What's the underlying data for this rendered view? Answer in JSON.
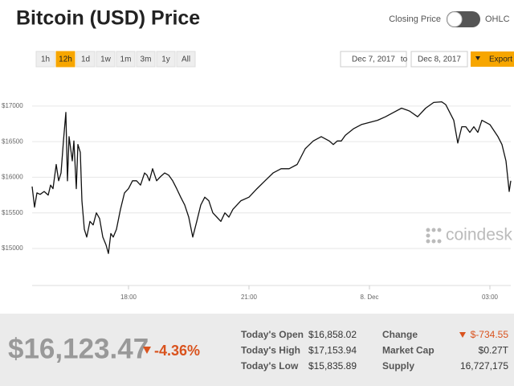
{
  "header": {
    "title": "Bitcoin (USD) Price",
    "toggle_left": "Closing Price",
    "toggle_right": "OHLC"
  },
  "ranges": [
    "1h",
    "12h",
    "1d",
    "1w",
    "1m",
    "3m",
    "1y",
    "All"
  ],
  "active_range": 1,
  "dates": {
    "from": "Dec 7, 2017",
    "to_label": "to",
    "to": "Dec 8, 2017",
    "export": "Export"
  },
  "chart_data": {
    "type": "line",
    "color": "#111111",
    "x": [
      15.6,
      15.66,
      15.72,
      15.8,
      15.9,
      16.0,
      16.06,
      16.12,
      16.2,
      16.26,
      16.32,
      16.38,
      16.44,
      16.48,
      16.52,
      16.56,
      16.6,
      16.64,
      16.7,
      16.74,
      16.8,
      16.84,
      16.9,
      16.96,
      17.04,
      17.12,
      17.2,
      17.28,
      17.36,
      17.44,
      17.5,
      17.56,
      17.62,
      17.7,
      17.8,
      17.9,
      18.0,
      18.1,
      18.2,
      18.3,
      18.4,
      18.46,
      18.52,
      18.6,
      18.7,
      18.8,
      18.9,
      19.0,
      19.1,
      19.2,
      19.3,
      19.4,
      19.5,
      19.6,
      19.7,
      19.8,
      19.9,
      20.0,
      20.1,
      20.2,
      20.3,
      20.4,
      20.5,
      20.6,
      20.8,
      21.0,
      21.2,
      21.4,
      21.6,
      21.8,
      22.0,
      22.2,
      22.4,
      22.6,
      22.8,
      23.0,
      23.1,
      23.2,
      23.3,
      23.4,
      23.6,
      23.8,
      24.0,
      24.2,
      24.4,
      24.6,
      24.8,
      25.0,
      25.2,
      25.4,
      25.6,
      25.8,
      25.9,
      26.0,
      26.1,
      26.2,
      26.3,
      26.4,
      26.5,
      26.6,
      26.7,
      26.8,
      27.0,
      27.2,
      27.3,
      27.4,
      27.48,
      27.52
    ],
    "values": [
      15870,
      15580,
      15780,
      15760,
      15800,
      15750,
      15890,
      15840,
      16180,
      15950,
      16060,
      16510,
      16910,
      15950,
      16570,
      16400,
      16230,
      16510,
      15840,
      16460,
      16350,
      15670,
      15270,
      15160,
      15380,
      15330,
      15500,
      15420,
      15160,
      15050,
      14930,
      15210,
      15160,
      15270,
      15550,
      15780,
      15840,
      15950,
      15950,
      15890,
      16060,
      16030,
      15950,
      16120,
      15950,
      16010,
      16060,
      16030,
      15950,
      15840,
      15720,
      15610,
      15440,
      15160,
      15380,
      15610,
      15720,
      15670,
      15500,
      15440,
      15380,
      15500,
      15440,
      15550,
      15670,
      15720,
      15840,
      15950,
      16060,
      16120,
      16120,
      16180,
      16400,
      16510,
      16570,
      16510,
      16460,
      16510,
      16510,
      16590,
      16680,
      16740,
      16770,
      16800,
      16850,
      16910,
      16970,
      16930,
      16850,
      16970,
      17050,
      17060,
      17020,
      16910,
      16800,
      16480,
      16710,
      16710,
      16630,
      16710,
      16630,
      16800,
      16740,
      16570,
      16460,
      16230,
      15800,
      15950
    ],
    "xlim": [
      15.6,
      27.52
    ],
    "ylim": [
      14480,
      17360
    ],
    "xticks": [
      {
        "value": 18,
        "label": "18:00"
      },
      {
        "value": 21,
        "label": "21:00"
      },
      {
        "value": 24,
        "label": "8. Dec"
      },
      {
        "value": 27,
        "label": "03:00"
      }
    ],
    "yticks": [
      {
        "value": 15000,
        "label": "$15000"
      },
      {
        "value": 15500,
        "label": "$15500"
      },
      {
        "value": 16000,
        "label": "$16000"
      },
      {
        "value": 16500,
        "label": "$16500"
      },
      {
        "value": 17000,
        "label": "$17000"
      }
    ],
    "grid": true
  },
  "watermark": "coindesk",
  "stats": {
    "price": "$16,123.47",
    "change_pct": "-4.36%",
    "rows": [
      [
        "Today's Open",
        "$16,858.02",
        "Change",
        "$-734.55"
      ],
      [
        "Today's High",
        "$17,153.94",
        "Market Cap",
        "$0.27T"
      ],
      [
        "Today's Low",
        "$15,835.89",
        "Supply",
        "16,727,175"
      ]
    ]
  }
}
